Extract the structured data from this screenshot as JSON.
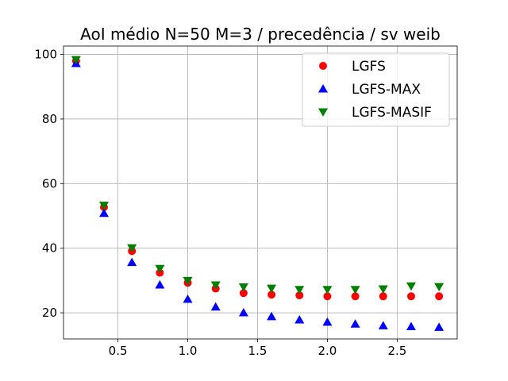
{
  "chart_data": {
    "type": "scatter",
    "title": "AoI médio N=50 M=3 / precedência / sv weib",
    "xlabel": "",
    "ylabel": "",
    "xlim": [
      0.11,
      2.93
    ],
    "ylim": [
      11.9,
      102.6
    ],
    "grid": true,
    "legend_position": "top-right",
    "x": [
      0.2,
      0.4,
      0.6,
      0.8,
      1.0,
      1.2,
      1.4,
      1.6,
      1.8,
      2.0,
      2.2,
      2.4,
      2.6,
      2.8
    ],
    "x_ticks": [
      0.5,
      1.0,
      1.5,
      2.0,
      2.5
    ],
    "x_tick_labels": [
      "0.5",
      "1.0",
      "1.5",
      "2.0",
      "2.5"
    ],
    "y_ticks": [
      20,
      40,
      60,
      80,
      100
    ],
    "y_tick_labels": [
      "20",
      "40",
      "60",
      "80",
      "100"
    ],
    "series": [
      {
        "name": "LGFS",
        "marker": "circle",
        "color": "#ff0000",
        "values": [
          98.0,
          52.7,
          39.1,
          32.4,
          29.3,
          27.5,
          26.1,
          25.6,
          25.4,
          25.1,
          25.1,
          25.1,
          25.1,
          25.1
        ]
      },
      {
        "name": "LGFS-MAX",
        "marker": "triangle-up",
        "color": "#0000ff",
        "values": [
          97.2,
          50.8,
          35.6,
          28.6,
          24.2,
          21.8,
          20.0,
          18.8,
          17.8,
          17.1,
          16.5,
          16.0,
          15.7,
          15.5
        ]
      },
      {
        "name": "LGFS-MASIF",
        "marker": "triangle-down",
        "color": "#008000",
        "values": [
          98.4,
          53.3,
          40.1,
          33.7,
          30.0,
          28.6,
          28.0,
          27.6,
          27.2,
          27.2,
          27.2,
          27.4,
          28.3,
          28.1
        ]
      }
    ]
  }
}
